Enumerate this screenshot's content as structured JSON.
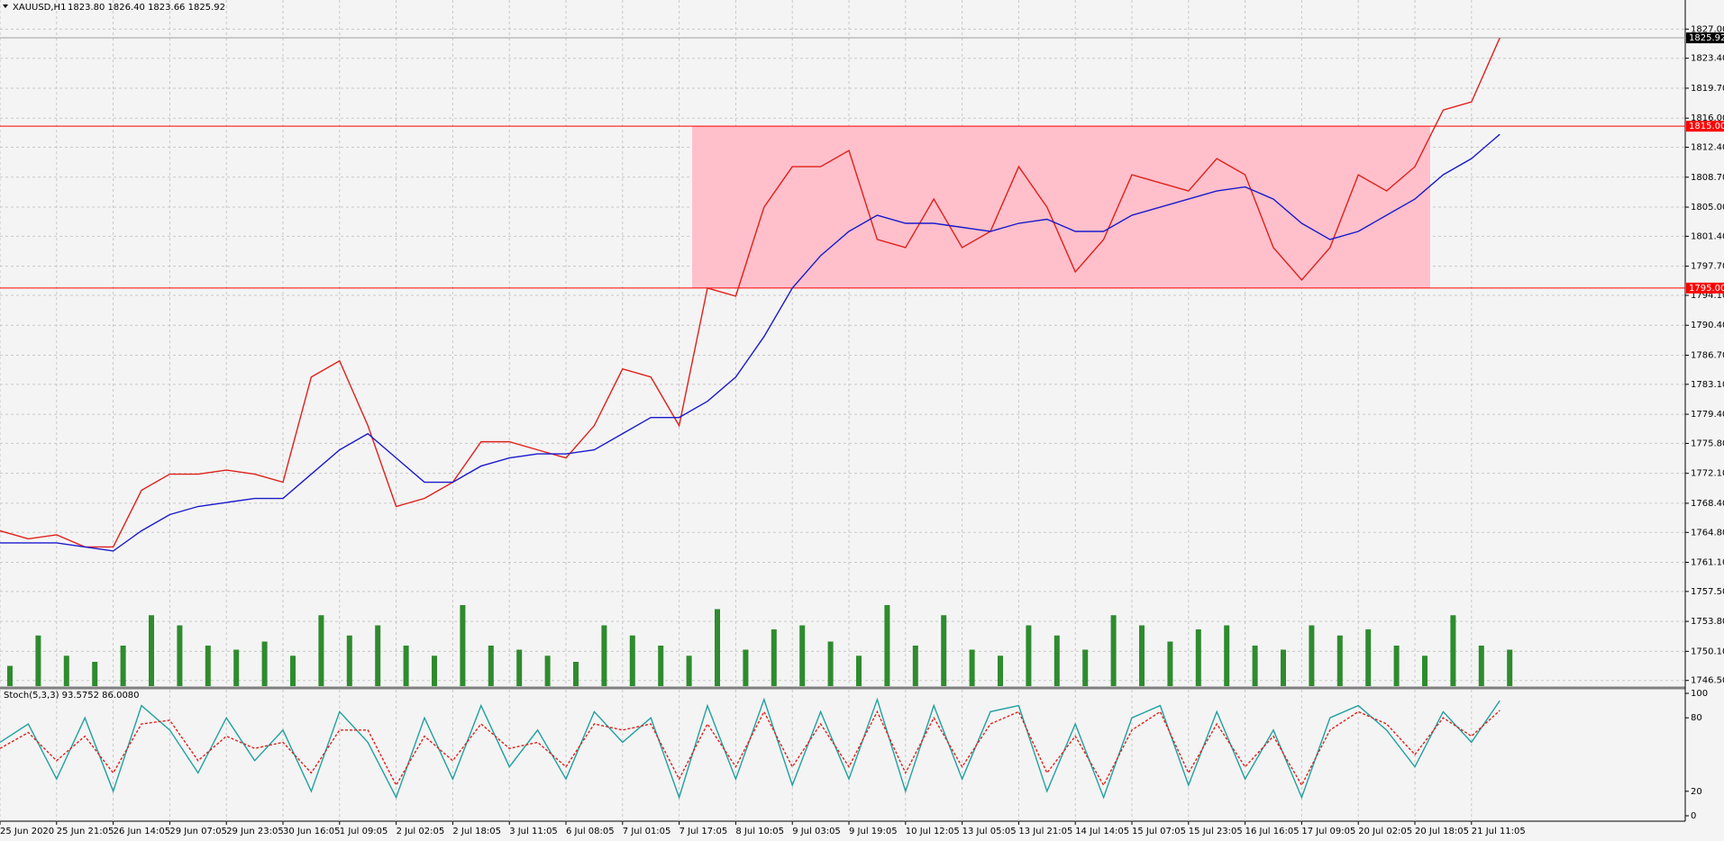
{
  "chart_data": {
    "type": "line",
    "title": "XAUUSD,H1",
    "quote": "1823.80 1826.40 1823.66 1825.92",
    "grid": true,
    "ylim": [
      1745.8,
      1830.6
    ],
    "yticks": [
      {
        "value": 1827,
        "label": "1827.00"
      },
      {
        "value": 1823.4,
        "label": "1823.40"
      },
      {
        "value": 1819.7,
        "label": "1819.70"
      },
      {
        "value": 1816,
        "label": "1816.00"
      },
      {
        "value": 1812.4,
        "label": "1812.40"
      },
      {
        "value": 1808.7,
        "label": "1808.70"
      },
      {
        "value": 1805,
        "label": "1805.00"
      },
      {
        "value": 1801.4,
        "label": "1801.40"
      },
      {
        "value": 1797.7,
        "label": "1797.70"
      },
      {
        "value": 1794.1,
        "label": "1794.10"
      },
      {
        "value": 1790.4,
        "label": "1790.40"
      },
      {
        "value": 1786.7,
        "label": "1786.70"
      },
      {
        "value": 1783.1,
        "label": "1783.10"
      },
      {
        "value": 1779.4,
        "label": "1779.40"
      },
      {
        "value": 1775.8,
        "label": "1775.80"
      },
      {
        "value": 1772.1,
        "label": "1772.10"
      },
      {
        "value": 1768.4,
        "label": "1768.40"
      },
      {
        "value": 1764.8,
        "label": "1764.80"
      },
      {
        "value": 1761.1,
        "label": "1761.10"
      },
      {
        "value": 1757.5,
        "label": "1757.50"
      },
      {
        "value": 1753.8,
        "label": "1753.80"
      },
      {
        "value": 1750.1,
        "label": "1750.10"
      },
      {
        "value": 1746.5,
        "label": "1746.50"
      }
    ],
    "current_price": {
      "value": 1825.92,
      "label": "1825.92"
    },
    "levels": [
      {
        "value": 1815,
        "label": "1815.00"
      },
      {
        "value": 1795,
        "label": "1795.00"
      }
    ],
    "categories": [
      "25 Jun 2020",
      null,
      "25 Jun 21:05",
      null,
      "26 Jun 14:05",
      null,
      "29 Jun 07:05",
      null,
      "29 Jun 23:05",
      null,
      "30 Jun 16:05",
      null,
      "1 Jul 09:05",
      null,
      "2 Jul 02:05",
      null,
      "2 Jul 18:05",
      null,
      "3 Jul 11:05",
      null,
      "6 Jul 08:05",
      null,
      "7 Jul 01:05",
      null,
      "7 Jul 17:05",
      null,
      "8 Jul 10:05",
      null,
      "9 Jul 03:05",
      null,
      "9 Jul 19:05",
      null,
      "10 Jul 12:05",
      null,
      "13 Jul 05:05",
      null,
      "13 Jul 21:05",
      null,
      "14 Jul 14:05",
      null,
      "15 Jul 07:05",
      null,
      "15 Jul 23:05",
      null,
      "16 Jul 16:05",
      null,
      "17 Jul 09:05",
      null,
      "20 Jul 02:05",
      null,
      "20 Jul 18:05",
      null,
      "21 Jul 11:05",
      null
    ],
    "series": [
      {
        "color": "#e0201b",
        "values": [
          1765,
          1764,
          1764.5,
          1763,
          1763,
          1770,
          1772,
          1772,
          1772.5,
          1772,
          1771,
          1784,
          1786,
          1778,
          1768,
          1769,
          1771,
          1776,
          1776,
          1775,
          1774,
          1778,
          1785,
          1784,
          1778,
          1795,
          1794,
          1805,
          1810,
          1810,
          1812,
          1801,
          1800,
          1806,
          1800,
          1802,
          1810,
          1805,
          1797,
          1801,
          1809,
          1808,
          1807,
          1811,
          1809,
          1800,
          1796,
          1800,
          1809,
          1807,
          1810,
          1817,
          1818,
          1825.92
        ]
      },
      {
        "color": "#1a1acc",
        "values": [
          1763.5,
          1763.5,
          1763.5,
          1763,
          1762.5,
          1765,
          1767,
          1768,
          1768.5,
          1769,
          1769,
          1772,
          1775,
          1777,
          1774,
          1771,
          1771,
          1773,
          1774,
          1774.5,
          1774.5,
          1775,
          1777,
          1779,
          1779,
          1781,
          1784,
          1789,
          1795,
          1799,
          1802,
          1804,
          1803,
          1803,
          1802.5,
          1802,
          1803,
          1803.5,
          1802,
          1802,
          1804,
          1805,
          1806,
          1807,
          1807.5,
          1806,
          1803,
          1801,
          1802,
          1804,
          1806,
          1809,
          1811,
          1814
        ]
      }
    ],
    "volume": {
      "color": "#2e8b2e",
      "values": [
        10,
        25,
        15,
        12,
        20,
        35,
        30,
        20,
        18,
        22,
        15,
        35,
        25,
        30,
        20,
        15,
        40,
        20,
        18,
        15,
        12,
        30,
        25,
        20,
        15,
        38,
        18,
        28,
        30,
        22,
        15,
        40,
        20,
        35,
        18,
        15,
        30,
        25,
        18,
        35,
        30,
        22,
        28,
        30,
        20,
        18,
        30,
        25,
        28,
        20,
        15,
        35,
        20,
        18
      ]
    },
    "indicator": {
      "title": "Stoch(5,3,3) 93.5752 86.0080",
      "ylim": [
        0,
        100
      ],
      "yticks": [
        100,
        80,
        20,
        0
      ],
      "series": [
        {
          "color": "#20a0a0",
          "values": [
            60,
            75,
            30,
            80,
            20,
            90,
            70,
            35,
            80,
            45,
            70,
            20,
            85,
            60,
            15,
            80,
            30,
            90,
            40,
            70,
            30,
            85,
            60,
            80,
            15,
            90,
            30,
            95,
            25,
            85,
            30,
            95,
            20,
            90,
            30,
            85,
            90,
            20,
            75,
            15,
            80,
            90,
            25,
            85,
            30,
            70,
            15,
            80,
            90,
            70,
            40,
            85,
            60,
            94
          ]
        },
        {
          "color": "#e0201b",
          "values": [
            55,
            68,
            45,
            65,
            35,
            75,
            78,
            45,
            65,
            55,
            60,
            35,
            70,
            70,
            25,
            65,
            45,
            75,
            55,
            60,
            40,
            75,
            70,
            75,
            30,
            75,
            40,
            85,
            40,
            75,
            40,
            85,
            35,
            80,
            40,
            75,
            85,
            35,
            65,
            25,
            70,
            85,
            35,
            75,
            40,
            65,
            25,
            70,
            85,
            75,
            50,
            80,
            65,
            86
          ]
        }
      ]
    }
  }
}
